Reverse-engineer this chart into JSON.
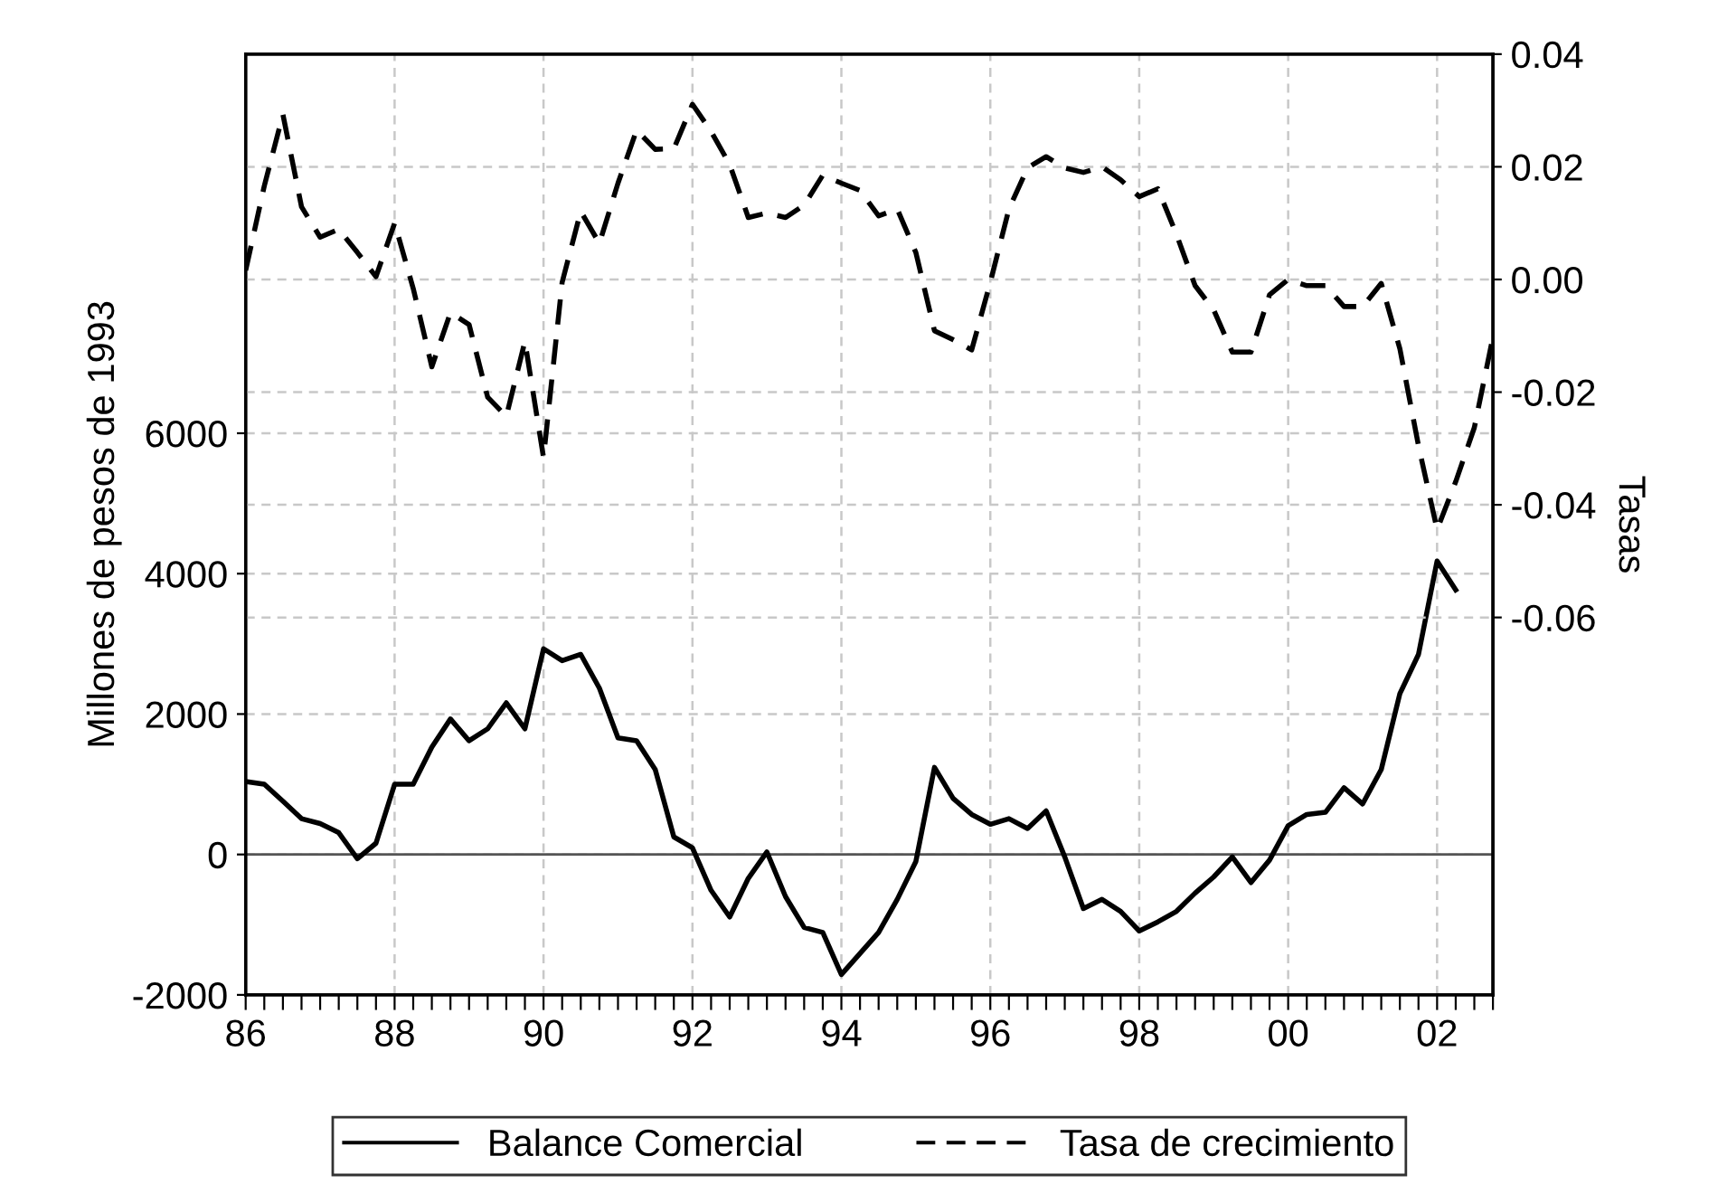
{
  "chart_data": {
    "type": "line",
    "xlabel": null,
    "xlim": [
      1986,
      2002.75
    ],
    "xticks": [
      {
        "value": 1986,
        "label": "86"
      },
      {
        "value": 1986.25,
        "label": null
      },
      {
        "value": 1986.5,
        "label": null
      },
      {
        "value": 1986.75,
        "label": null
      },
      {
        "value": 1987,
        "label": null
      },
      {
        "value": 1987.25,
        "label": null
      },
      {
        "value": 1987.5,
        "label": null
      },
      {
        "value": 1987.75,
        "label": null
      },
      {
        "value": 1988,
        "label": "88"
      },
      {
        "value": 1988.25,
        "label": null
      },
      {
        "value": 1988.5,
        "label": null
      },
      {
        "value": 1988.75,
        "label": null
      },
      {
        "value": 1989,
        "label": null
      },
      {
        "value": 1989.25,
        "label": null
      },
      {
        "value": 1989.5,
        "label": null
      },
      {
        "value": 1989.75,
        "label": null
      },
      {
        "value": 1990,
        "label": "90"
      },
      {
        "value": 1990.25,
        "label": null
      },
      {
        "value": 1990.5,
        "label": null
      },
      {
        "value": 1990.75,
        "label": null
      },
      {
        "value": 1991,
        "label": null
      },
      {
        "value": 1991.25,
        "label": null
      },
      {
        "value": 1991.5,
        "label": null
      },
      {
        "value": 1991.75,
        "label": null
      },
      {
        "value": 1992,
        "label": "92"
      },
      {
        "value": 1992.25,
        "label": null
      },
      {
        "value": 1992.5,
        "label": null
      },
      {
        "value": 1992.75,
        "label": null
      },
      {
        "value": 1993,
        "label": null
      },
      {
        "value": 1993.25,
        "label": null
      },
      {
        "value": 1993.5,
        "label": null
      },
      {
        "value": 1993.75,
        "label": null
      },
      {
        "value": 1994,
        "label": "94"
      },
      {
        "value": 1994.25,
        "label": null
      },
      {
        "value": 1994.5,
        "label": null
      },
      {
        "value": 1994.75,
        "label": null
      },
      {
        "value": 1995,
        "label": null
      },
      {
        "value": 1995.25,
        "label": null
      },
      {
        "value": 1995.5,
        "label": null
      },
      {
        "value": 1995.75,
        "label": null
      },
      {
        "value": 1996,
        "label": "96"
      },
      {
        "value": 1996.25,
        "label": null
      },
      {
        "value": 1996.5,
        "label": null
      },
      {
        "value": 1996.75,
        "label": null
      },
      {
        "value": 1997,
        "label": null
      },
      {
        "value": 1997.25,
        "label": null
      },
      {
        "value": 1997.5,
        "label": null
      },
      {
        "value": 1997.75,
        "label": null
      },
      {
        "value": 1998,
        "label": "98"
      },
      {
        "value": 1998.25,
        "label": null
      },
      {
        "value": 1998.5,
        "label": null
      },
      {
        "value": 1998.75,
        "label": null
      },
      {
        "value": 1999,
        "label": null
      },
      {
        "value": 1999.25,
        "label": null
      },
      {
        "value": 1999.5,
        "label": null
      },
      {
        "value": 1999.75,
        "label": null
      },
      {
        "value": 2000,
        "label": "00"
      },
      {
        "value": 2000.25,
        "label": null
      },
      {
        "value": 2000.5,
        "label": null
      },
      {
        "value": 2000.75,
        "label": null
      },
      {
        "value": 2001,
        "label": null
      },
      {
        "value": 2001.25,
        "label": null
      },
      {
        "value": 2001.5,
        "label": null
      },
      {
        "value": 2001.75,
        "label": null
      },
      {
        "value": 2002,
        "label": "02"
      },
      {
        "value": 2002.25,
        "label": null
      },
      {
        "value": 2002.5,
        "label": null
      },
      {
        "value": 2002.75,
        "label": null
      }
    ],
    "ylabel": "Millones de pesos de 1993",
    "y2label": "Tasas",
    "ylim": [
      -2000,
      11400
    ],
    "yticks": [
      -2000,
      0,
      2000,
      4000,
      6000
    ],
    "y2lim": [
      -0.127,
      0.04
    ],
    "y2ticks": [
      {
        "value": 0.04,
        "label": "0.04"
      },
      {
        "value": 0.02,
        "label": "0.02"
      },
      {
        "value": 0.0,
        "label": "0.00"
      },
      {
        "value": -0.02,
        "label": "-0.02"
      },
      {
        "value": -0.04,
        "label": "-0.04"
      },
      {
        "value": -0.06,
        "label": "-0.06"
      }
    ],
    "grid": true,
    "legend": "bottom",
    "marker": "none",
    "ref_lines": [
      {
        "axis": "y",
        "value": 0,
        "label": null,
        "color": "#555555"
      }
    ],
    "series": [
      {
        "name": "Balance Comercial",
        "color": "#000000",
        "line_style": "solid",
        "x": [
          1986,
          1986.25,
          1986.5,
          1986.75,
          1987,
          1987.25,
          1987.5,
          1987.75,
          1988,
          1988.25,
          1988.5,
          1988.75,
          1989,
          1989.25,
          1989.5,
          1989.75,
          1990,
          1990.25,
          1990.5,
          1990.75,
          1991,
          1991.25,
          1991.5,
          1991.75,
          1992,
          1992.25,
          1992.5,
          1992.75,
          1993,
          1993.25,
          1993.5,
          1993.75,
          1994,
          1994.25,
          1994.5,
          1994.75,
          1995,
          1995.25,
          1995.5,
          1995.75,
          1996,
          1996.25,
          1996.5,
          1996.75,
          1997,
          1997.25,
          1997.5,
          1997.75,
          1998,
          1998.25,
          1998.5,
          1998.75,
          1999,
          1999.25,
          1999.5,
          1999.75,
          2000,
          2000.25,
          2000.5,
          2000.75,
          2001,
          2001.25,
          2001.5,
          2001.75,
          2002,
          2002.25
        ],
        "values": [
          1040,
          1000,
          760,
          510,
          440,
          310,
          -60,
          160,
          1000,
          1000,
          1530,
          1930,
          1620,
          1790,
          2160,
          1790,
          2930,
          2760,
          2850,
          2370,
          1660,
          1620,
          1210,
          250,
          95,
          -510,
          -890,
          -340,
          35,
          -600,
          -1040,
          -1110,
          -1710,
          -1410,
          -1110,
          -640,
          -100,
          1240,
          800,
          570,
          430,
          510,
          370,
          620,
          -35,
          -770,
          -640,
          -810,
          -1090,
          -960,
          -810,
          -550,
          -320,
          -35,
          -400,
          -80,
          410,
          570,
          600,
          950,
          720,
          1210,
          2290,
          2850,
          4180,
          3770
        ]
      },
      {
        "name": "Tasa de crecimiento",
        "color": "#000000",
        "line_style": "dashed",
        "axis": "y2",
        "x": [
          1986,
          1986.25,
          1986.5,
          1986.75,
          1987,
          1987.25,
          1987.5,
          1987.75,
          1988,
          1988.25,
          1988.5,
          1988.75,
          1989,
          1989.25,
          1989.5,
          1989.75,
          1990,
          1990.25,
          1990.5,
          1990.75,
          1991,
          1991.25,
          1991.5,
          1991.75,
          1992,
          1992.25,
          1992.5,
          1992.75,
          1993,
          1993.25,
          1993.5,
          1993.75,
          1994,
          1994.25,
          1994.5,
          1994.75,
          1995,
          1995.25,
          1995.5,
          1995.75,
          1996,
          1996.25,
          1996.5,
          1996.75,
          1997,
          1997.25,
          1997.5,
          1997.75,
          1998,
          1998.25,
          1998.5,
          1998.75,
          1999,
          1999.25,
          1999.5,
          1999.75,
          2000,
          2000.25,
          2000.5,
          2000.75,
          2001,
          2001.25,
          2001.5,
          2001.75,
          2002,
          2002.25,
          2002.5,
          2002.75
        ],
        "values": [
          0.0016,
          0.0166,
          0.0293,
          0.0129,
          0.0075,
          0.0089,
          0.0048,
          0.0005,
          0.01,
          -0.0016,
          -0.0155,
          -0.0059,
          -0.008,
          -0.0209,
          -0.0243,
          -0.011,
          -0.0316,
          -0.0005,
          0.0121,
          0.0064,
          0.0171,
          0.0265,
          0.0231,
          0.0232,
          0.0311,
          0.0263,
          0.0204,
          0.011,
          0.0118,
          0.011,
          0.0132,
          0.0185,
          0.0171,
          0.0158,
          0.0113,
          0.0125,
          0.0048,
          -0.0091,
          -0.0107,
          -0.0125,
          -0.0005,
          0.0125,
          0.0198,
          0.0218,
          0.0198,
          0.019,
          0.02,
          0.0177,
          0.0147,
          0.0161,
          0.008,
          -0.0011,
          -0.0054,
          -0.0129,
          -0.0129,
          -0.0027,
          0.0,
          -0.0011,
          -0.0011,
          -0.0048,
          -0.0048,
          -0.0007,
          -0.0123,
          -0.0295,
          -0.0444,
          -0.0359,
          -0.0263,
          -0.0102
        ]
      }
    ]
  }
}
